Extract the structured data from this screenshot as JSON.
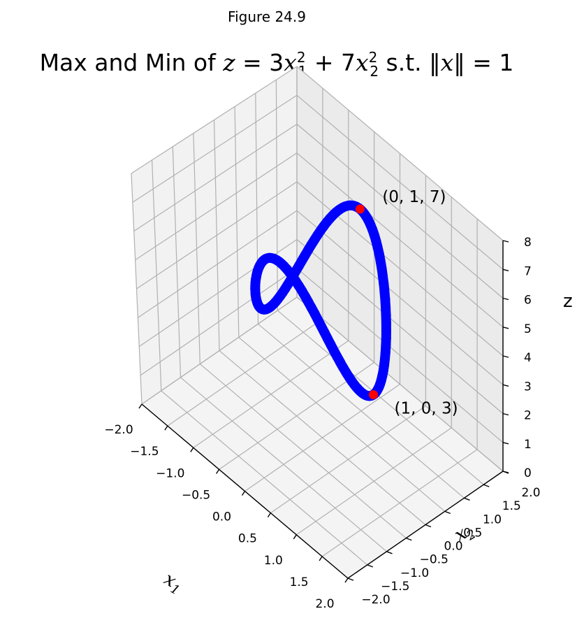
{
  "figure_label": "Figure 24.9",
  "chart_data": {
    "type": "line3d",
    "title": {
      "prefix": "Max and Min of ",
      "var_z": "z",
      "eq": " = 3",
      "var_x1": "x",
      "sub1": "1",
      "sup1": "2",
      "plus": " + 7",
      "var_x2": "x",
      "sub2": "2",
      "sup2": "2",
      "st": " s.t. ‖",
      "var_x": "x",
      "tail": "‖ = 1"
    },
    "xlabel": "x1",
    "ylabel": "x2",
    "zlabel": "z",
    "xlim": [
      -2,
      2
    ],
    "ylim": [
      -2,
      2
    ],
    "zlim": [
      0,
      8
    ],
    "x_ticks": [
      "−2.0",
      "−1.5",
      "−1.0",
      "−0.5",
      "0.0",
      "0.5",
      "1.0",
      "1.5",
      "2.0"
    ],
    "y_ticks": [
      "−2.0",
      "−1.5",
      "−1.0",
      "−0.5",
      "0.0",
      "0.5",
      "1.0",
      "1.5",
      "2.0"
    ],
    "z_ticks": [
      "0",
      "1",
      "2",
      "3",
      "4",
      "5",
      "6",
      "7",
      "8"
    ],
    "series": [
      {
        "curve": "x1 = cos(t), x2 = sin(t), z = 3·x1² + 7·x2²",
        "t_range": [
          0,
          6.2832
        ],
        "color": "#0000ff",
        "marker": "circle"
      }
    ],
    "highlighted_points": [
      {
        "x": 0,
        "y": 1,
        "z": 7,
        "label": "(0, 1, 7)",
        "color": "#ff0000"
      },
      {
        "x": 1,
        "y": 0,
        "z": 3,
        "label": "(1, 0, 3)",
        "color": "#ff0000"
      }
    ],
    "grid": true,
    "pane_colors": {
      "left": "#f2f2f2",
      "back": "#ebebeb",
      "floor": "#f4f4f4"
    },
    "grid_color": "#b0b0b0"
  }
}
